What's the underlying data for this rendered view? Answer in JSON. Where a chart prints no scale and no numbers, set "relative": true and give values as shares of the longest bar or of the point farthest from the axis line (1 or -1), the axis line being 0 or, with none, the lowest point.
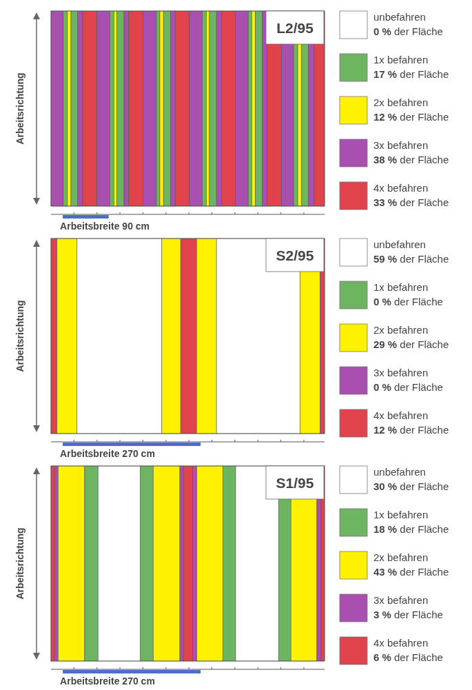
{
  "chart_data": [
    {
      "type": "bar",
      "orientation": "horizontal",
      "stacked": true,
      "relative": true,
      "title": "L2/95",
      "ylabel": "Arbeitsrichtung",
      "annotations": [
        "Arbeitsbreite 90 cm"
      ],
      "categories": [
        null
      ],
      "series": [
        {
          "color": "#a84fb0",
          "values": [
            0.045
          ]
        },
        {
          "color": "#6db561",
          "values": [
            0.015
          ]
        },
        {
          "color": "#fff200",
          "values": [
            0.013
          ]
        },
        {
          "color": "#6db561",
          "values": [
            0.024
          ]
        },
        {
          "color": "#a84fb0",
          "values": [
            0.019
          ]
        },
        {
          "color": "#e0434b",
          "values": [
            0.052
          ]
        },
        {
          "color": "#a84fb0",
          "values": [
            0.047
          ]
        },
        {
          "color": "#6db561",
          "values": [
            0.015
          ]
        },
        {
          "color": "#fff200",
          "values": [
            0.011
          ]
        },
        {
          "color": "#6db561",
          "values": [
            0.026
          ]
        },
        {
          "color": "#a84fb0",
          "values": [
            0.017
          ]
        },
        {
          "color": "#e0434b",
          "values": [
            0.052
          ]
        },
        {
          "color": "#a84fb0",
          "values": [
            0.049
          ]
        },
        {
          "color": "#6db561",
          "values": [
            0.013
          ]
        },
        {
          "color": "#fff200",
          "values": [
            0.013
          ]
        },
        {
          "color": "#6db561",
          "values": [
            0.026
          ]
        },
        {
          "color": "#a84fb0",
          "values": [
            0.017
          ]
        },
        {
          "color": "#e0434b",
          "values": [
            0.052
          ]
        },
        {
          "color": "#a84fb0",
          "values": [
            0.047
          ]
        },
        {
          "color": "#6db561",
          "values": [
            0.015
          ]
        },
        {
          "color": "#fff200",
          "values": [
            0.011
          ]
        },
        {
          "color": "#6db561",
          "values": [
            0.026
          ]
        },
        {
          "color": "#a84fb0",
          "values": [
            0.019
          ]
        },
        {
          "color": "#e0434b",
          "values": [
            0.05
          ]
        },
        {
          "color": "#a84fb0",
          "values": [
            0.047
          ]
        },
        {
          "color": "#6db561",
          "values": [
            0.013
          ]
        },
        {
          "color": "#fff200",
          "values": [
            0.013
          ]
        },
        {
          "color": "#6db561",
          "values": [
            0.026
          ]
        },
        {
          "color": "#a84fb0",
          "values": [
            0.017
          ]
        },
        {
          "color": "#e0434b",
          "values": [
            0.052
          ]
        },
        {
          "color": "#a84fb0",
          "values": [
            0.045
          ]
        },
        {
          "color": "#6db561",
          "values": [
            0.015
          ]
        },
        {
          "color": "#fff200",
          "values": [
            0.013
          ]
        },
        {
          "color": "#6db561",
          "values": [
            0.026
          ]
        },
        {
          "color": "#a84fb0",
          "values": [
            0.021
          ]
        },
        {
          "color": "#e0434b",
          "values": [
            0.038
          ]
        }
      ]
    },
    {
      "type": "other",
      "categories": [
        "unbefahren",
        "1x befahren",
        "2x befahren",
        "3x befahren",
        "4x befahren"
      ],
      "values": [
        0,
        17,
        12,
        38,
        33
      ],
      "value_labels": [
        "0 % der Fläche",
        "17 % der Fläche",
        "12 % der Fläche",
        "38 % der Fläche",
        "33 % der Fläche"
      ],
      "colors": [
        "#ffffff",
        "#6db561",
        "#fff200",
        "#a84fb0",
        "#e0434b"
      ]
    },
    {
      "type": "bar",
      "orientation": "horizontal",
      "stacked": true,
      "relative": true,
      "title": "S2/95",
      "ylabel": "Arbeitsrichtung",
      "annotations": [
        "Arbeitsbreite 270 cm"
      ],
      "categories": [
        null
      ],
      "series": [
        {
          "color": "#e0434b",
          "values": [
            0.022
          ]
        },
        {
          "color": "#fff200",
          "values": [
            0.073
          ]
        },
        {
          "color": "#ffffff",
          "values": [
            0.31
          ]
        },
        {
          "color": "#fff200",
          "values": [
            0.069
          ]
        },
        {
          "color": "#e0434b",
          "values": [
            0.058
          ]
        },
        {
          "color": "#fff200",
          "values": [
            0.073
          ]
        },
        {
          "color": "#ffffff",
          "values": [
            0.306
          ]
        },
        {
          "color": "#fff200",
          "values": [
            0.073
          ]
        },
        {
          "color": "#e0434b",
          "values": [
            0.016
          ]
        }
      ]
    },
    {
      "type": "other",
      "categories": [
        "unbefahren",
        "1x befahren",
        "2x befahren",
        "3x befahren",
        "4x befahren"
      ],
      "values": [
        59,
        0,
        29,
        0,
        12
      ],
      "value_labels": [
        "59 % der Fläche",
        "0 % der Fläche",
        "29 % der Fläche",
        "0 % der Fläche",
        "12 % der Fläche"
      ],
      "colors": [
        "#ffffff",
        "#6db561",
        "#fff200",
        "#a84fb0",
        "#e0434b"
      ]
    },
    {
      "type": "bar",
      "orientation": "horizontal",
      "stacked": true,
      "relative": true,
      "title": "S1/95",
      "ylabel": "Arbeitsrichtung",
      "annotations": [
        "Arbeitsbreite 270 cm"
      ],
      "categories": [
        null
      ],
      "series": [
        {
          "color": "#e0434b",
          "values": [
            0.013
          ]
        },
        {
          "color": "#a84fb0",
          "values": [
            0.013
          ]
        },
        {
          "color": "#fff200",
          "values": [
            0.097
          ]
        },
        {
          "color": "#6db561",
          "values": [
            0.049
          ]
        },
        {
          "color": "#ffffff",
          "values": [
            0.155
          ]
        },
        {
          "color": "#6db561",
          "values": [
            0.047
          ]
        },
        {
          "color": "#fff200",
          "values": [
            0.097
          ]
        },
        {
          "color": "#a84fb0",
          "values": [
            0.013
          ]
        },
        {
          "color": "#e0434b",
          "values": [
            0.034
          ]
        },
        {
          "color": "#a84fb0",
          "values": [
            0.015
          ]
        },
        {
          "color": "#fff200",
          "values": [
            0.095
          ]
        },
        {
          "color": "#6db561",
          "values": [
            0.047
          ]
        },
        {
          "color": "#ffffff",
          "values": [
            0.157
          ]
        },
        {
          "color": "#6db561",
          "values": [
            0.045
          ]
        },
        {
          "color": "#fff200",
          "values": [
            0.095
          ]
        },
        {
          "color": "#a84fb0",
          "values": [
            0.015
          ]
        },
        {
          "color": "#e0434b",
          "values": [
            0.013
          ]
        }
      ]
    },
    {
      "type": "other",
      "categories": [
        "unbefahren",
        "1x befahren",
        "2x befahren",
        "3x befahren",
        "4x befahren"
      ],
      "values": [
        30,
        18,
        43,
        3,
        6
      ],
      "value_labels": [
        "30 % der Fläche",
        "18 % der Fläche",
        "43 % der Fläche",
        "3 % der Fläche",
        "6 % der Fläche"
      ],
      "colors": [
        "#ffffff",
        "#6db561",
        "#fff200",
        "#a84fb0",
        "#e0434b"
      ]
    }
  ]
}
